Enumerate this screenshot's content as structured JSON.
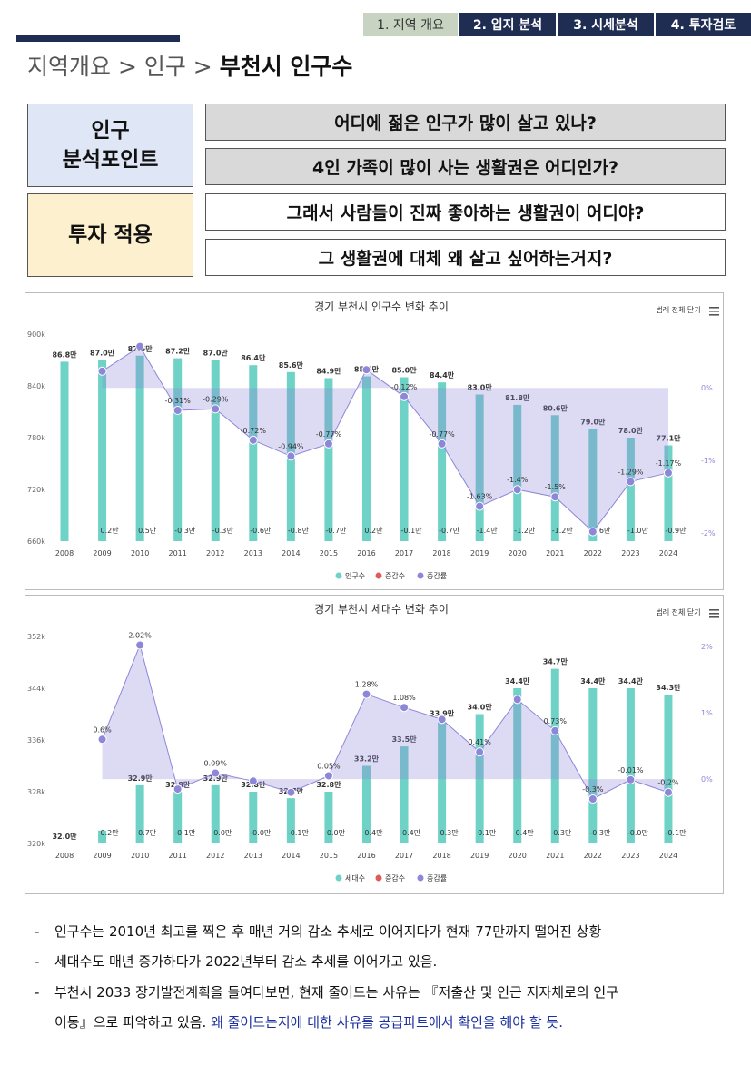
{
  "nav": {
    "tabs": [
      "1. 지역 개요",
      "2. 입지 분석",
      "3. 시세분석",
      "4. 투자검토"
    ]
  },
  "breadcrumb": {
    "path": "지역개요 > 인구 > ",
    "current": "부천시 인구수"
  },
  "analysis": {
    "point_label": [
      "인구",
      "분석포인트"
    ],
    "point_questions": [
      "어디에 젊은 인구가 많이 살고 있나?",
      "4인 가족이 많이 사는 생활권은 어디인가?"
    ],
    "invest_label": "투자 적용",
    "invest_questions": [
      "그래서 사람들이 진짜 좋아하는 생활권이 어디야?",
      "그 생활권에 대체 왜 살고 싶어하는거지?"
    ]
  },
  "chart_data": [
    {
      "type": "bar",
      "title": "경기 부천시 인구수 변화 추이",
      "button": "범례 전체 닫기",
      "categories": [
        "2008",
        "2009",
        "2010",
        "2011",
        "2012",
        "2013",
        "2014",
        "2015",
        "2016",
        "2017",
        "2018",
        "2019",
        "2020",
        "2021",
        "2022",
        "2023",
        "2024"
      ],
      "series": [
        {
          "name": "인구수",
          "color": "#6fd2c6",
          "values": [
            868000,
            870000,
            875000,
            872000,
            870000,
            864000,
            856000,
            849000,
            851000,
            850000,
            844000,
            830000,
            818000,
            806000,
            790000,
            780000,
            771000
          ],
          "value_labels": [
            "86.8만",
            "87.0만",
            "87.5만",
            "87.2만",
            "87.0만",
            "86.4만",
            "85.6만",
            "84.9만",
            "85.1만",
            "85.0만",
            "84.4만",
            "83.0만",
            "81.8만",
            "80.6만",
            "79.0만",
            "78.0만",
            "77.1만"
          ]
        },
        {
          "name": "증감수",
          "color": "#e05a5a",
          "values": [
            null,
            2000,
            5000,
            -3000,
            -3000,
            -6000,
            -8000,
            -7000,
            2000,
            -1000,
            -7000,
            -14000,
            -12000,
            -12000,
            -16000,
            -10000,
            -9000
          ],
          "value_labels": [
            null,
            "0.2만",
            "0.5만",
            "-0.3만",
            "-0.3만",
            "-0.6만",
            "-0.8만",
            "-0.7만",
            "0.2만",
            "-0.1만",
            "-0.7만",
            "-1.4만",
            "-1.2만",
            "-1.2만",
            "-1.6만",
            "-1.0만",
            "-0.9만"
          ]
        },
        {
          "name": "증감률",
          "color": "#8e86d8",
          "axis": "y2",
          "values": [
            null,
            0.23,
            0.57,
            -0.31,
            -0.29,
            -0.72,
            -0.94,
            -0.77,
            0.25,
            -0.12,
            -0.77,
            -1.63,
            -1.4,
            -1.5,
            -1.98,
            -1.29,
            -1.17
          ],
          "value_labels": [
            null,
            null,
            null,
            "-0.31%",
            "-0.29%",
            "-0.72%",
            "-0.94%",
            "-0.77%",
            null,
            "-0.12%",
            "-0.77%",
            "-1.63%",
            "-1.4%",
            "-1.5%",
            null,
            "-1.29%",
            "-1.17%"
          ]
        }
      ],
      "ylim": [
        660000,
        900000
      ],
      "yticks": [
        {
          "value": 900000,
          "label": "900k"
        },
        {
          "value": 840000,
          "label": "840k"
        },
        {
          "value": 780000,
          "label": "780k"
        },
        {
          "value": 720000,
          "label": "720k"
        },
        {
          "value": 660000,
          "label": "660k"
        }
      ],
      "y2lim": [
        -2.11,
        0.74
      ],
      "y2ticks": [
        {
          "value": 0,
          "label": "0%"
        },
        {
          "value": -1,
          "label": "-1%"
        },
        {
          "value": -2,
          "label": "-2%"
        }
      ]
    },
    {
      "type": "bar",
      "title": "경기 부천시 세대수 변화 추이",
      "button": "범례 전체 닫기",
      "categories": [
        "2008",
        "2009",
        "2010",
        "2011",
        "2012",
        "2013",
        "2014",
        "2015",
        "2016",
        "2017",
        "2018",
        "2019",
        "2020",
        "2021",
        "2022",
        "2023",
        "2024"
      ],
      "series": [
        {
          "name": "세대수",
          "color": "#6fd2c6",
          "values": [
            320000,
            322000,
            329000,
            328000,
            329000,
            328000,
            327000,
            328000,
            332000,
            335000,
            339000,
            340000,
            344000,
            347000,
            344000,
            344000,
            343000
          ],
          "value_labels": [
            "32.0만",
            null,
            "32.9만",
            "32.8만",
            "32.9만",
            "32.8만",
            "32.7만",
            "32.8만",
            "33.2만",
            "33.5만",
            "33.9만",
            "34.0만",
            "34.4만",
            "34.7만",
            "34.4만",
            "34.4만",
            "34.3만"
          ]
        },
        {
          "name": "증감수",
          "color": "#e05a5a",
          "values": [
            null,
            2000,
            7000,
            -1000,
            0,
            -100,
            -1000,
            0,
            4000,
            4000,
            3000,
            1000,
            4000,
            3000,
            -3000,
            -100,
            -1000
          ],
          "value_labels": [
            null,
            "0.2만",
            "0.7만",
            "-0.1만",
            "0.0만",
            "-0.0만",
            "-0.1만",
            "0.0만",
            "0.4만",
            "0.4만",
            "0.3만",
            "0.1만",
            "0.4만",
            "0.3만",
            "-0.3만",
            "-0.0만",
            "-0.1만"
          ]
        },
        {
          "name": "증감률",
          "color": "#8e86d8",
          "axis": "y2",
          "values": [
            null,
            0.6,
            2.02,
            -0.15,
            0.09,
            -0.03,
            -0.2,
            0.05,
            1.28,
            1.08,
            0.9,
            0.41,
            1.2,
            0.73,
            -0.3,
            -0.01,
            -0.2
          ],
          "value_labels": [
            null,
            "0.6%",
            "2.02%",
            null,
            "0.09%",
            null,
            null,
            "0.05%",
            "1.28%",
            "1.08%",
            null,
            "0.41%",
            null,
            "0.73%",
            "-0.3%",
            "-0.01%",
            "-0.2%"
          ]
        }
      ],
      "ylim": [
        320000,
        352000
      ],
      "yticks": [
        {
          "value": 352000,
          "label": "352k"
        },
        {
          "value": 344000,
          "label": "344k"
        },
        {
          "value": 336000,
          "label": "336k"
        },
        {
          "value": 328000,
          "label": "328k"
        },
        {
          "value": 320000,
          "label": "320k"
        }
      ],
      "y2lim": [
        -0.97,
        2.15
      ],
      "y2ticks": [
        {
          "value": 2,
          "label": "2%"
        },
        {
          "value": 1,
          "label": "1%"
        },
        {
          "value": 0,
          "label": "0%"
        }
      ]
    }
  ],
  "notes": [
    "인구수는 2010년 최고를 찍은 후 매년 거의 감소 추세로 이어지다가 현재 77만까지 떨어진 상황",
    "세대수도 매년 증가하다가 2022년부터 감소 추세를 이어가고 있음.",
    "부천시 2033 장기발전계획을 들여다보면, 현재 줄어드는 사유는 『저출산 및 인근 지자체로의 인구"
  ],
  "note_last": {
    "text": "이동』으로 파악하고 있음. ",
    "highlight": "왜 줄어드는지에 대한 사유를 공급파트에서 확인을 해야 할 듯."
  }
}
